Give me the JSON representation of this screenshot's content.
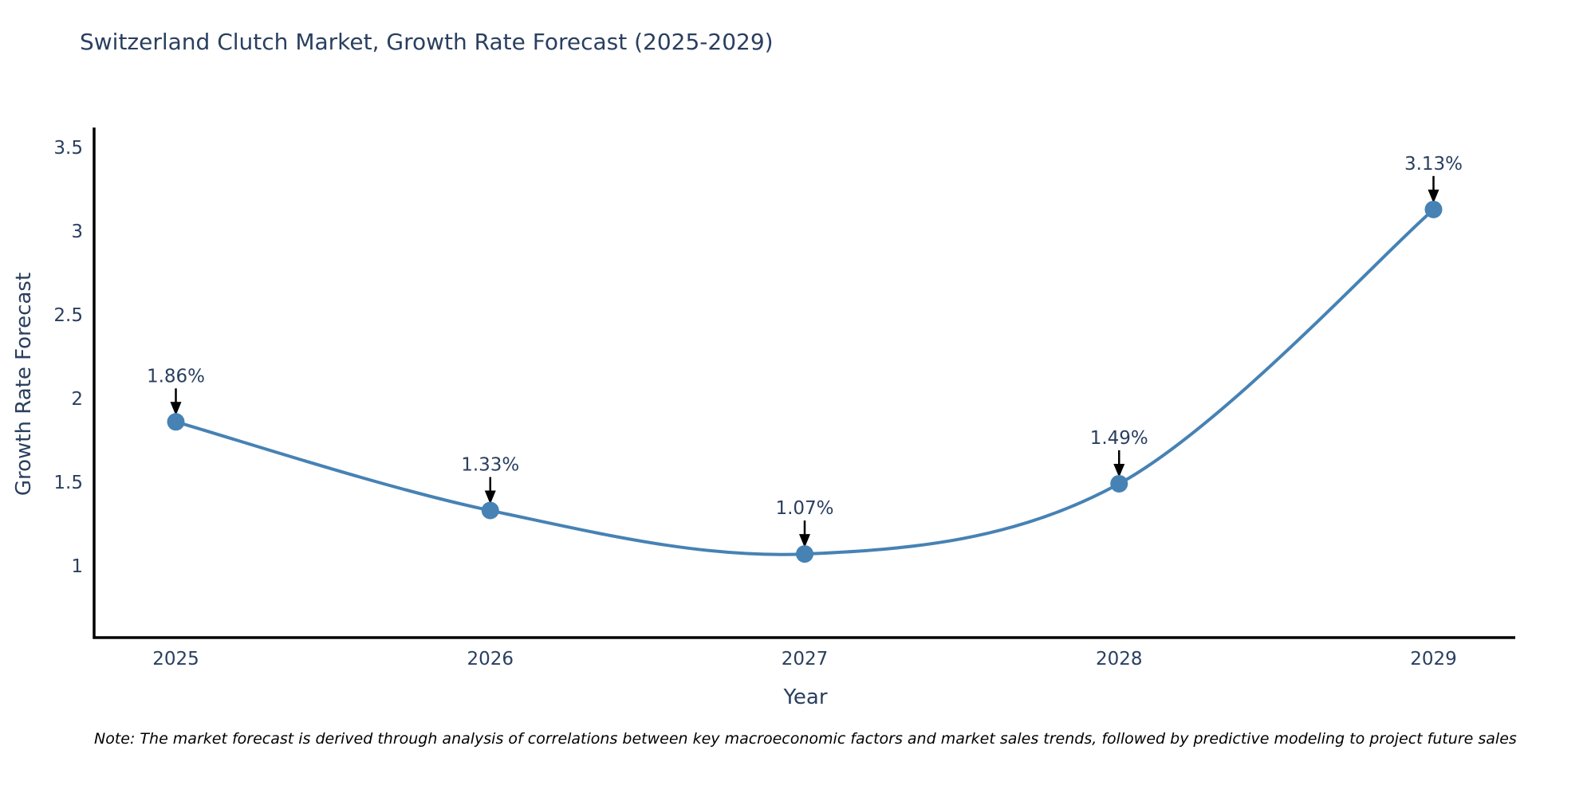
{
  "title": "Switzerland Clutch Market, Growth Rate Forecast (2025-2029)",
  "note": "Note: The market forecast is derived through analysis of correlations between key macroeconomic factors and market sales trends, followed by predictive modeling to project future sales",
  "chart_data": {
    "type": "line",
    "title": "Switzerland Clutch Market, Growth Rate Forecast (2025-2029)",
    "xlabel": "Year",
    "ylabel": "Growth Rate Forecast",
    "x": [
      2025,
      2026,
      2027,
      2028,
      2029
    ],
    "values": [
      1.86,
      1.33,
      1.07,
      1.49,
      3.13
    ],
    "point_labels": [
      "1.86%",
      "1.33%",
      "1.07%",
      "1.49%",
      "3.13%"
    ],
    "xticks": [
      "2025",
      "2026",
      "2027",
      "2028",
      "2029"
    ],
    "yticks": [
      1,
      1.5,
      2,
      2.5,
      3,
      3.5
    ],
    "xlim": [
      2024.74,
      2029.26
    ],
    "ylim": [
      0.57,
      3.62
    ],
    "line_shape": "spline",
    "grid": false,
    "legend": "none",
    "colors": {
      "line": "#4682b4",
      "marker": "#4682b4",
      "axis_line": "#000000",
      "axis_text": "#2a3f5f",
      "title_text": "#2a3f5f",
      "annotation_text": "#2a3f5f",
      "annotation_arrow": "#000000",
      "note_text": "#000000",
      "background": "#ffffff"
    }
  }
}
